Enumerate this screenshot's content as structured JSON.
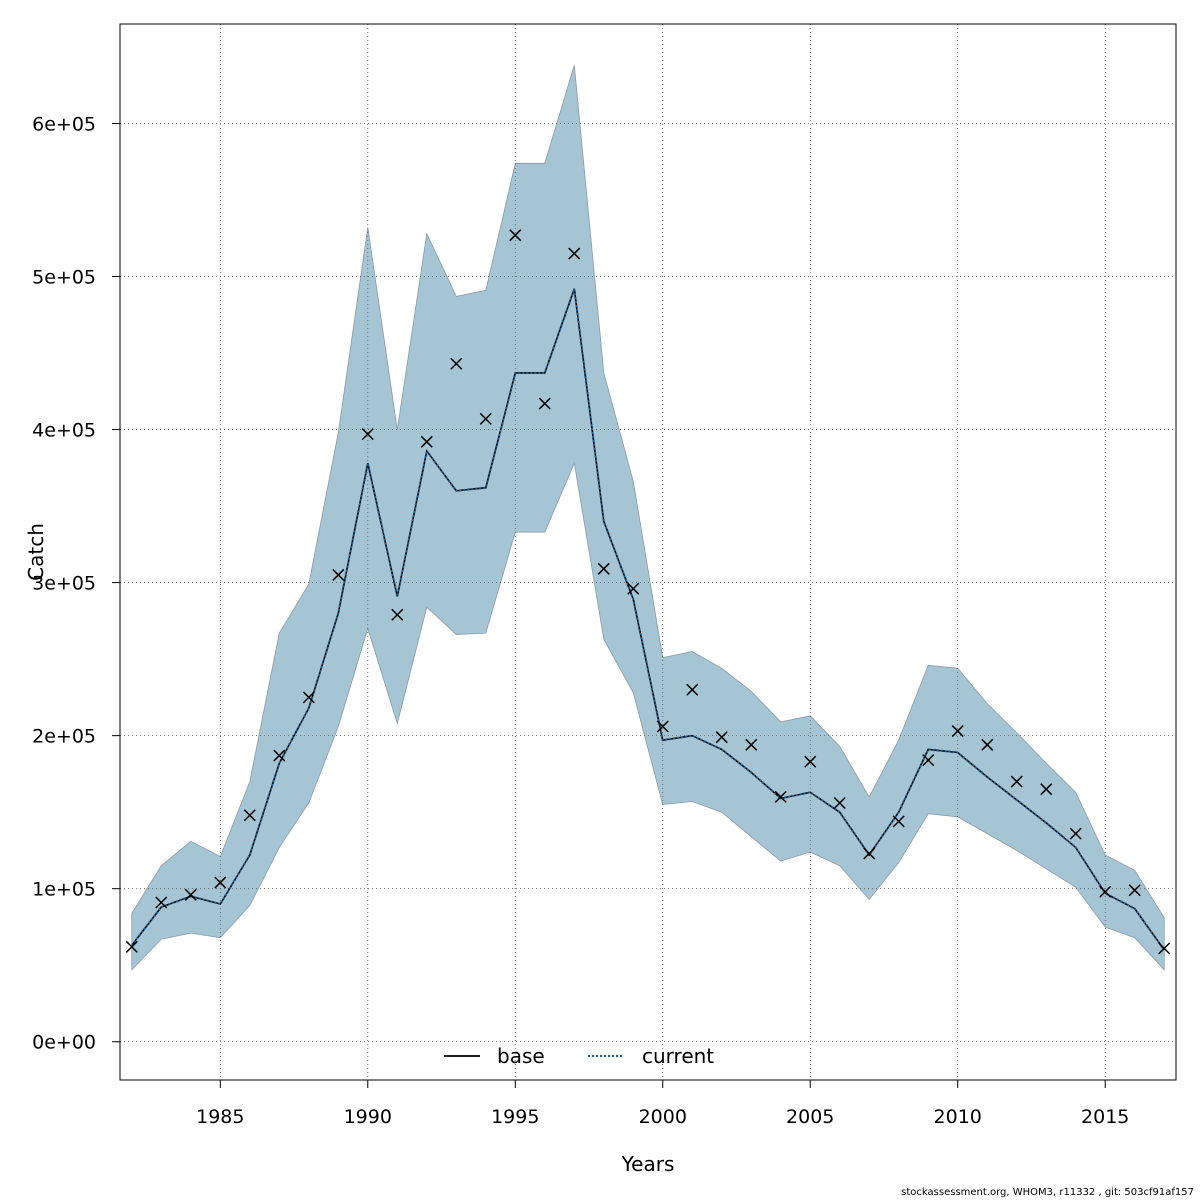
{
  "chart_data": {
    "type": "line",
    "xlabel": "Years",
    "ylabel": "Catch",
    "xlim": [
      1981.6,
      2017.4
    ],
    "ylim": [
      -25000,
      665000
    ],
    "x_ticks": [
      1985,
      1990,
      1995,
      2000,
      2005,
      2010,
      2015
    ],
    "x_tick_labels": [
      "1985",
      "1990",
      "1995",
      "2000",
      "2005",
      "2010",
      "2015"
    ],
    "y_ticks": [
      0,
      100000,
      200000,
      300000,
      400000,
      500000,
      600000
    ],
    "y_tick_labels": [
      "0e+00",
      "1e+05",
      "2e+05",
      "3e+05",
      "4e+05",
      "5e+05",
      "6e+05"
    ],
    "grid": true,
    "legend_position": "bottom-center",
    "years": [
      1982,
      1983,
      1984,
      1985,
      1986,
      1987,
      1988,
      1989,
      1990,
      1991,
      1992,
      1993,
      1994,
      1995,
      1996,
      1997,
      1998,
      1999,
      2000,
      2001,
      2002,
      2003,
      2004,
      2005,
      2006,
      2007,
      2008,
      2009,
      2010,
      2011,
      2012,
      2013,
      2014,
      2015,
      2016,
      2017
    ],
    "observed": [
      62000,
      91000,
      96000,
      104000,
      148000,
      187000,
      225000,
      305000,
      397000,
      279000,
      392000,
      443000,
      407000,
      527000,
      417000,
      515000,
      309000,
      296000,
      206000,
      230000,
      199000,
      194000,
      160000,
      183000,
      156000,
      123000,
      144000,
      184000,
      203000,
      194000,
      170000,
      165000,
      136000,
      98000,
      99000,
      61000
    ],
    "series": [
      {
        "name": "base",
        "style": "solid",
        "color": "#000000",
        "values": [
          63000,
          88000,
          95000,
          90000,
          122000,
          182000,
          218000,
          280000,
          378000,
          291000,
          386000,
          360000,
          362000,
          437000,
          437000,
          492000,
          340000,
          289000,
          197000,
          200000,
          191000,
          176000,
          159000,
          163000,
          150000,
          122000,
          150000,
          191000,
          189000,
          173000,
          158000,
          143000,
          127000,
          97000,
          87000,
          60000
        ]
      },
      {
        "name": "current",
        "style": "dotted",
        "color": "#1f5f8b",
        "values": [
          63000,
          88000,
          95000,
          90000,
          122000,
          182000,
          218000,
          280000,
          378000,
          291000,
          386000,
          360000,
          362000,
          437000,
          437000,
          492000,
          340000,
          289000,
          197000,
          200000,
          191000,
          176000,
          159000,
          163000,
          150000,
          122000,
          150000,
          191000,
          189000,
          173000,
          158000,
          143000,
          127000,
          97000,
          87000,
          60000
        ]
      }
    ],
    "confidence_band": {
      "color": "#a5c4d4",
      "upper": [
        84000,
        115000,
        131000,
        121000,
        170000,
        267000,
        299000,
        398000,
        532000,
        400000,
        528000,
        487000,
        491000,
        574000,
        574000,
        638000,
        437000,
        366000,
        251000,
        255000,
        244000,
        229000,
        209000,
        213000,
        193000,
        160000,
        197000,
        246000,
        244000,
        221000,
        202000,
        182000,
        163000,
        122000,
        112000,
        81000
      ],
      "lower": [
        47000,
        67000,
        71000,
        68000,
        89000,
        127000,
        156000,
        206000,
        270000,
        208000,
        284000,
        266000,
        267000,
        333000,
        333000,
        378000,
        263000,
        228000,
        155000,
        157000,
        150000,
        134000,
        118000,
        124000,
        115000,
        93000,
        117000,
        149000,
        147000,
        136000,
        125000,
        113000,
        101000,
        75000,
        68000,
        47000
      ]
    }
  },
  "footer": {
    "text": "stockassessment.org, WHOM3, r11332 , git: 503cf91af157"
  }
}
